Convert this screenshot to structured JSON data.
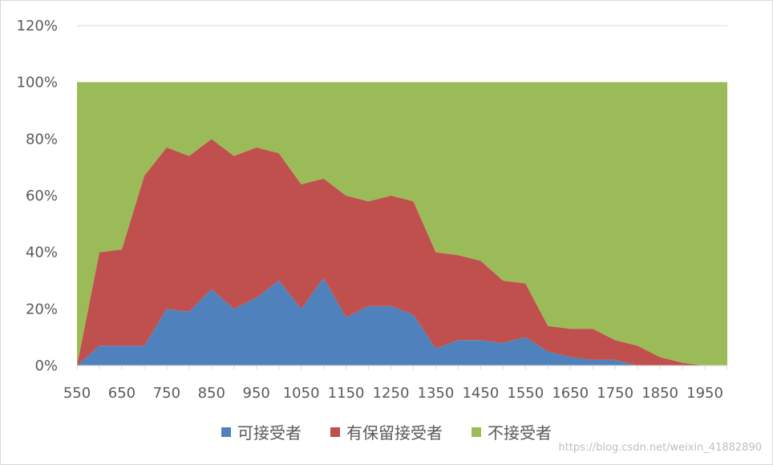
{
  "chart_data": {
    "type": "area",
    "stacked": "percent",
    "x": [
      550,
      600,
      650,
      700,
      750,
      800,
      850,
      900,
      950,
      1000,
      1050,
      1100,
      1150,
      1200,
      1250,
      1300,
      1350,
      1400,
      1450,
      1500,
      1550,
      1600,
      1650,
      1700,
      1750,
      1800,
      1850,
      1900,
      1950,
      2000
    ],
    "x_tick_labels": [
      "550",
      "650",
      "750",
      "850",
      "950",
      "1050",
      "1150",
      "1250",
      "1350",
      "1450",
      "1550",
      "1650",
      "1750",
      "1850",
      "1950"
    ],
    "y_tick_labels": [
      "0%",
      "20%",
      "40%",
      "60%",
      "80%",
      "100%",
      "120%"
    ],
    "ylim": [
      0,
      1.2
    ],
    "gridlines": true,
    "legend_position": "bottom",
    "series": [
      {
        "name": "可接受者",
        "color": "#4f81bd",
        "values": [
          0,
          0.07,
          0.07,
          0.07,
          0.2,
          0.19,
          0.27,
          0.2,
          0.24,
          0.3,
          0.2,
          0.31,
          0.17,
          0.21,
          0.21,
          0.18,
          0.06,
          0.09,
          0.09,
          0.08,
          0.1,
          0.05,
          0.03,
          0.02,
          0.02,
          0.0,
          0.0,
          0.0,
          0.0,
          0.0
        ]
      },
      {
        "name": "有保留接受者",
        "color": "#c0504d",
        "values": [
          0,
          0.33,
          0.34,
          0.6,
          0.57,
          0.55,
          0.53,
          0.54,
          0.53,
          0.45,
          0.44,
          0.35,
          0.43,
          0.37,
          0.39,
          0.4,
          0.34,
          0.3,
          0.28,
          0.22,
          0.19,
          0.09,
          0.1,
          0.11,
          0.07,
          0.07,
          0.03,
          0.01,
          0.0,
          0.0
        ]
      },
      {
        "name": "不接受者",
        "color": "#9bbb59",
        "values": [
          1.0,
          0.6,
          0.59,
          0.33,
          0.23,
          0.26,
          0.2,
          0.26,
          0.23,
          0.25,
          0.36,
          0.34,
          0.4,
          0.42,
          0.4,
          0.42,
          0.6,
          0.61,
          0.63,
          0.7,
          0.71,
          0.86,
          0.87,
          0.87,
          0.91,
          0.93,
          0.97,
          0.99,
          1.0,
          1.0
        ]
      }
    ]
  },
  "watermark": "https://blog.csdn.net/weixin_41882890"
}
